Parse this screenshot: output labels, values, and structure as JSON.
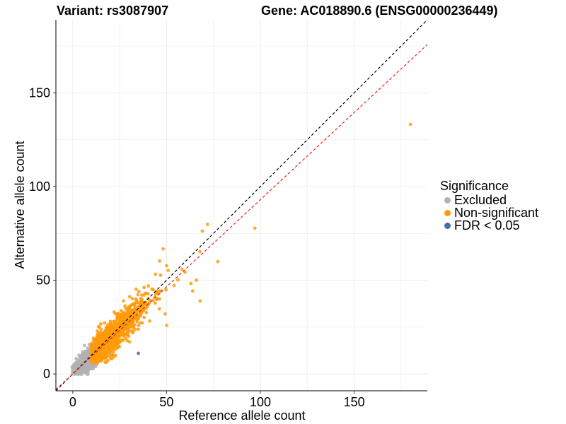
{
  "title": {
    "variant": "Variant: rs3087907",
    "gene": "Gene: AC018890.6 (ENSG00000236449)"
  },
  "legend": {
    "title": "Significance",
    "items": [
      {
        "label": "Excluded",
        "color": "#b2b2b2"
      },
      {
        "label": "Non-significant",
        "color": "#ff9a0a"
      },
      {
        "label": "FDR < 0.05",
        "color": "#3d6fa8"
      }
    ]
  },
  "chart_data": {
    "type": "scatter",
    "title": "Variant: rs3087907    Gene: AC018890.6 (ENSG00000236449)",
    "xlabel": "Reference allele count",
    "ylabel": "Alternative allele count",
    "xlim": [
      -9,
      189
    ],
    "ylim": [
      -9,
      189
    ],
    "xticks": [
      0,
      50,
      100,
      150
    ],
    "yticks": [
      0,
      50,
      100,
      150
    ],
    "grid": true,
    "legend_position": "right",
    "reference_lines": [
      {
        "name": "identity",
        "slope": 1,
        "intercept": 0,
        "color": "#000000",
        "style": "dashed"
      },
      {
        "name": "fit",
        "slope": 0.93,
        "intercept": 0,
        "color": "#e8221e",
        "style": "dashed"
      }
    ],
    "series": [
      {
        "name": "Excluded",
        "color": "#b2b2b2",
        "cloud": {
          "count": 650,
          "x_range": [
            0,
            22
          ],
          "y_range": [
            0,
            25
          ],
          "correlation": 0.85,
          "x_center": 8,
          "y_center": 7
        }
      },
      {
        "name": "Non-significant",
        "color": "#ff9a0a",
        "cloud": {
          "count": 950,
          "x_range": [
            10,
            50
          ],
          "y_range": [
            6,
            50
          ],
          "correlation": 0.9,
          "x_center": 19,
          "y_center": 18
        },
        "points": [
          {
            "x": 180,
            "y": 133
          },
          {
            "x": 97,
            "y": 78
          },
          {
            "x": 72,
            "y": 80
          },
          {
            "x": 77,
            "y": 60
          },
          {
            "x": 69,
            "y": 76
          },
          {
            "x": 68,
            "y": 65
          },
          {
            "x": 68,
            "y": 39
          },
          {
            "x": 64,
            "y": 44
          },
          {
            "x": 60,
            "y": 54
          },
          {
            "x": 56,
            "y": 50
          },
          {
            "x": 50,
            "y": 58
          },
          {
            "x": 54,
            "y": 47
          },
          {
            "x": 48,
            "y": 67
          },
          {
            "x": 51,
            "y": 55
          },
          {
            "x": 47,
            "y": 53
          },
          {
            "x": 44,
            "y": 53
          },
          {
            "x": 45,
            "y": 44
          },
          {
            "x": 50,
            "y": 26
          },
          {
            "x": 49,
            "y": 32
          },
          {
            "x": 63,
            "y": 48
          },
          {
            "x": 58,
            "y": 56
          },
          {
            "x": 66,
            "y": 50
          },
          {
            "x": 46,
            "y": 60
          },
          {
            "x": 40,
            "y": 47
          }
        ]
      },
      {
        "name": "FDR < 0.05",
        "color": "#3d6fa8",
        "points": [
          {
            "x": 35,
            "y": 11
          }
        ]
      }
    ]
  }
}
